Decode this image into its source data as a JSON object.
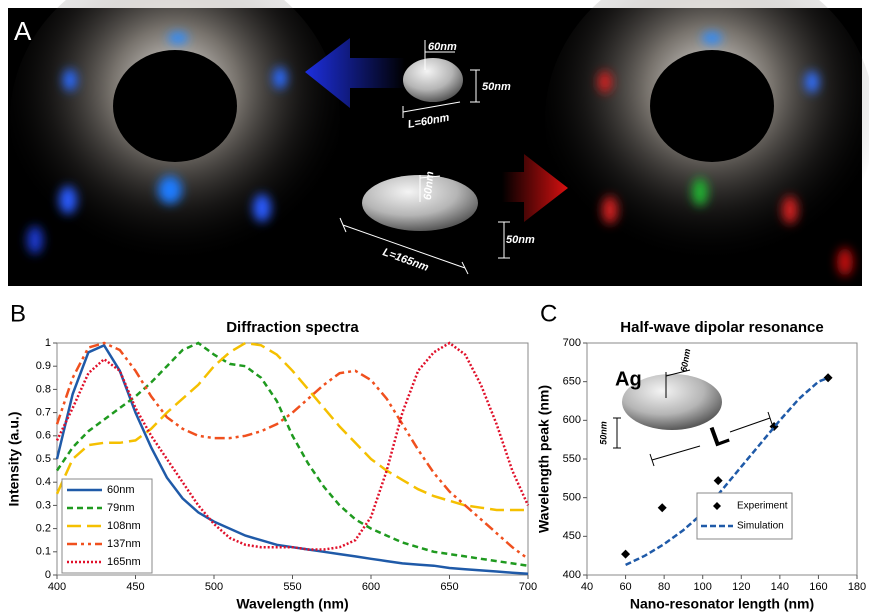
{
  "panel_a": {
    "label": "A",
    "small_particle": {
      "width": "60nm",
      "height": "50nm",
      "length": "L=60nm"
    },
    "large_particle": {
      "width": "60nm",
      "height": "50nm",
      "length": "L=165nm"
    }
  },
  "chart_data": [
    {
      "type": "line",
      "panel_label": "B",
      "title": "Diffraction spectra",
      "x_label": "Wavelength (nm)",
      "y_label": "Intensity (a.u.)",
      "x": [
        400,
        410,
        420,
        430,
        440,
        450,
        460,
        470,
        480,
        490,
        500,
        510,
        520,
        530,
        540,
        550,
        560,
        570,
        580,
        590,
        600,
        610,
        620,
        630,
        640,
        650,
        660,
        670,
        680,
        690,
        700
      ],
      "series": [
        {
          "name": "60nm",
          "color": "#1f5aa8",
          "dash": "",
          "values": [
            0.5,
            0.78,
            0.96,
            0.99,
            0.88,
            0.7,
            0.55,
            0.42,
            0.33,
            0.27,
            0.23,
            0.2,
            0.17,
            0.15,
            0.13,
            0.12,
            0.11,
            0.1,
            0.09,
            0.08,
            0.07,
            0.06,
            0.05,
            0.045,
            0.04,
            0.03,
            0.025,
            0.02,
            0.015,
            0.01,
            0.005
          ]
        },
        {
          "name": "79nm",
          "color": "#1f9a1f",
          "dash": "6,4",
          "values": [
            0.45,
            0.55,
            0.62,
            0.67,
            0.72,
            0.77,
            0.83,
            0.9,
            0.97,
            1.0,
            0.95,
            0.91,
            0.9,
            0.85,
            0.75,
            0.6,
            0.48,
            0.38,
            0.3,
            0.24,
            0.2,
            0.17,
            0.14,
            0.12,
            0.1,
            0.09,
            0.08,
            0.07,
            0.06,
            0.05,
            0.04
          ]
        },
        {
          "name": "108nm",
          "color": "#f5c000",
          "dash": "14,6",
          "values": [
            0.35,
            0.5,
            0.56,
            0.57,
            0.57,
            0.58,
            0.63,
            0.7,
            0.76,
            0.82,
            0.9,
            0.96,
            1.0,
            0.99,
            0.95,
            0.88,
            0.8,
            0.72,
            0.64,
            0.57,
            0.5,
            0.45,
            0.41,
            0.37,
            0.34,
            0.32,
            0.3,
            0.29,
            0.28,
            0.28,
            0.28
          ]
        },
        {
          "name": "137nm",
          "color": "#f0501e",
          "dash": "10,4,3,4,3,4",
          "values": [
            0.65,
            0.85,
            0.98,
            1.0,
            0.97,
            0.88,
            0.77,
            0.68,
            0.63,
            0.6,
            0.59,
            0.59,
            0.6,
            0.62,
            0.65,
            0.7,
            0.76,
            0.82,
            0.87,
            0.88,
            0.84,
            0.76,
            0.65,
            0.54,
            0.44,
            0.36,
            0.3,
            0.24,
            0.18,
            0.12,
            0.07
          ]
        },
        {
          "name": "165nm",
          "color": "#e0102a",
          "dash": "2,2",
          "values": [
            0.58,
            0.72,
            0.87,
            0.93,
            0.88,
            0.72,
            0.6,
            0.5,
            0.4,
            0.3,
            0.22,
            0.16,
            0.13,
            0.12,
            0.12,
            0.12,
            0.11,
            0.11,
            0.12,
            0.15,
            0.25,
            0.45,
            0.7,
            0.88,
            0.96,
            1.0,
            0.95,
            0.82,
            0.65,
            0.45,
            0.3
          ]
        }
      ],
      "xlim": [
        400,
        700
      ],
      "xticks": [
        400,
        450,
        500,
        550,
        600,
        650,
        700
      ],
      "ylim": [
        0,
        1
      ],
      "yticks": [
        0,
        0.1,
        0.2,
        0.3,
        0.4,
        0.5,
        0.6,
        0.7,
        0.8,
        0.9,
        1
      ],
      "legend": "lower-left"
    },
    {
      "type": "scatter",
      "panel_label": "C",
      "title": "Half-wave dipolar resonance",
      "x_label": "Nano-resonator length (nm)",
      "y_label": "Wavelength peak (nm)",
      "inset": {
        "material": "Ag",
        "width": "60nm",
        "height": "50nm",
        "length": "L"
      },
      "series": [
        {
          "name": "Experiment",
          "type": "scatter",
          "color": "#000000",
          "dash": "",
          "x": [
            60,
            79,
            108,
            137,
            165
          ],
          "values": [
            427,
            487,
            522,
            592,
            655
          ]
        },
        {
          "name": "Simulation",
          "type": "line",
          "color": "#1f5aa8",
          "dash": "6,3",
          "x": [
            60,
            70,
            80,
            90,
            100,
            110,
            120,
            130,
            140,
            150,
            160,
            165
          ],
          "values": [
            413,
            425,
            440,
            458,
            480,
            510,
            540,
            570,
            600,
            628,
            650,
            655
          ]
        }
      ],
      "xlim": [
        40,
        180
      ],
      "xticks": [
        40,
        60,
        80,
        100,
        120,
        140,
        160,
        180
      ],
      "ylim": [
        400,
        700
      ],
      "yticks": [
        400,
        450,
        500,
        550,
        600,
        650,
        700
      ],
      "legend": "lower-right"
    }
  ]
}
